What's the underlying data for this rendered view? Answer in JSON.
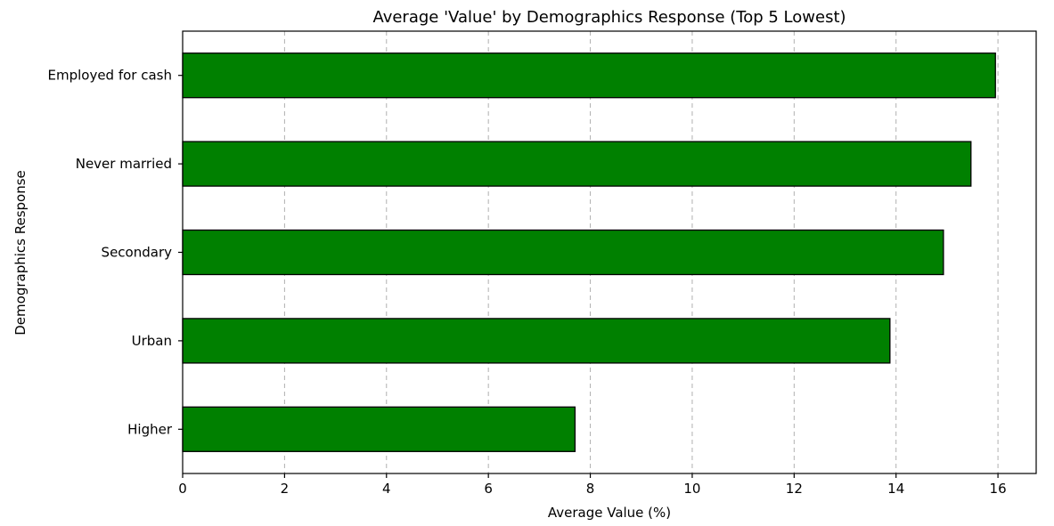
{
  "chart_data": {
    "type": "bar",
    "orientation": "horizontal",
    "title": "Average 'Value' by Demographics Response (Top 5 Lowest)",
    "xlabel": "Average Value (%)",
    "ylabel": "Demographics Response",
    "categories": [
      "Employed for cash",
      "Never married",
      "Secondary",
      "Urban",
      "Higher"
    ],
    "values": [
      15.95,
      15.47,
      14.93,
      13.88,
      7.7
    ],
    "xlim": [
      0,
      16.75
    ],
    "xticks": [
      0,
      2,
      4,
      6,
      8,
      10,
      12,
      14,
      16
    ],
    "xtick_labels": [
      "0",
      "2",
      "4",
      "6",
      "8",
      "10",
      "12",
      "14",
      "16"
    ],
    "grid": "x-axis dashed",
    "bar_color": "#008000",
    "edge_color": "#000000",
    "grid_color": "#b0b0b0"
  }
}
